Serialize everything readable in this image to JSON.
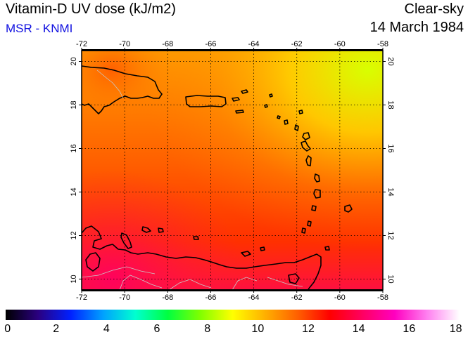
{
  "header": {
    "title": "Vitamin-D UV dose (kJ/m2)",
    "subtitle": "MSR - KNMI",
    "condition": "Clear-sky",
    "date": "14 March 1984"
  },
  "map": {
    "lon_range": [
      -72,
      -58
    ],
    "lat_range": [
      9.5,
      20.5
    ],
    "lon_ticks": [
      "-72",
      "-70",
      "-68",
      "-66",
      "-64",
      "-62",
      "-60",
      "-58"
    ],
    "lat_ticks": [
      "10",
      "12",
      "14",
      "16",
      "18",
      "20"
    ],
    "grid": "dotted",
    "region": "Caribbean - Lesser and Greater Antilles, northern Venezuela"
  },
  "colorbar": {
    "min": 0,
    "max": 18,
    "tick_labels": [
      "0",
      "2",
      "4",
      "6",
      "8",
      "10",
      "12",
      "14",
      "16",
      "18"
    ],
    "colors": [
      "#000000",
      "#2a0080",
      "#0020ff",
      "#00a0ff",
      "#00ffd0",
      "#00ff40",
      "#80ff00",
      "#ffff00",
      "#ffb000",
      "#ff6000",
      "#ff0000",
      "#ff0060",
      "#ff00c0",
      "#ff80f0",
      "#ffffff"
    ]
  }
}
